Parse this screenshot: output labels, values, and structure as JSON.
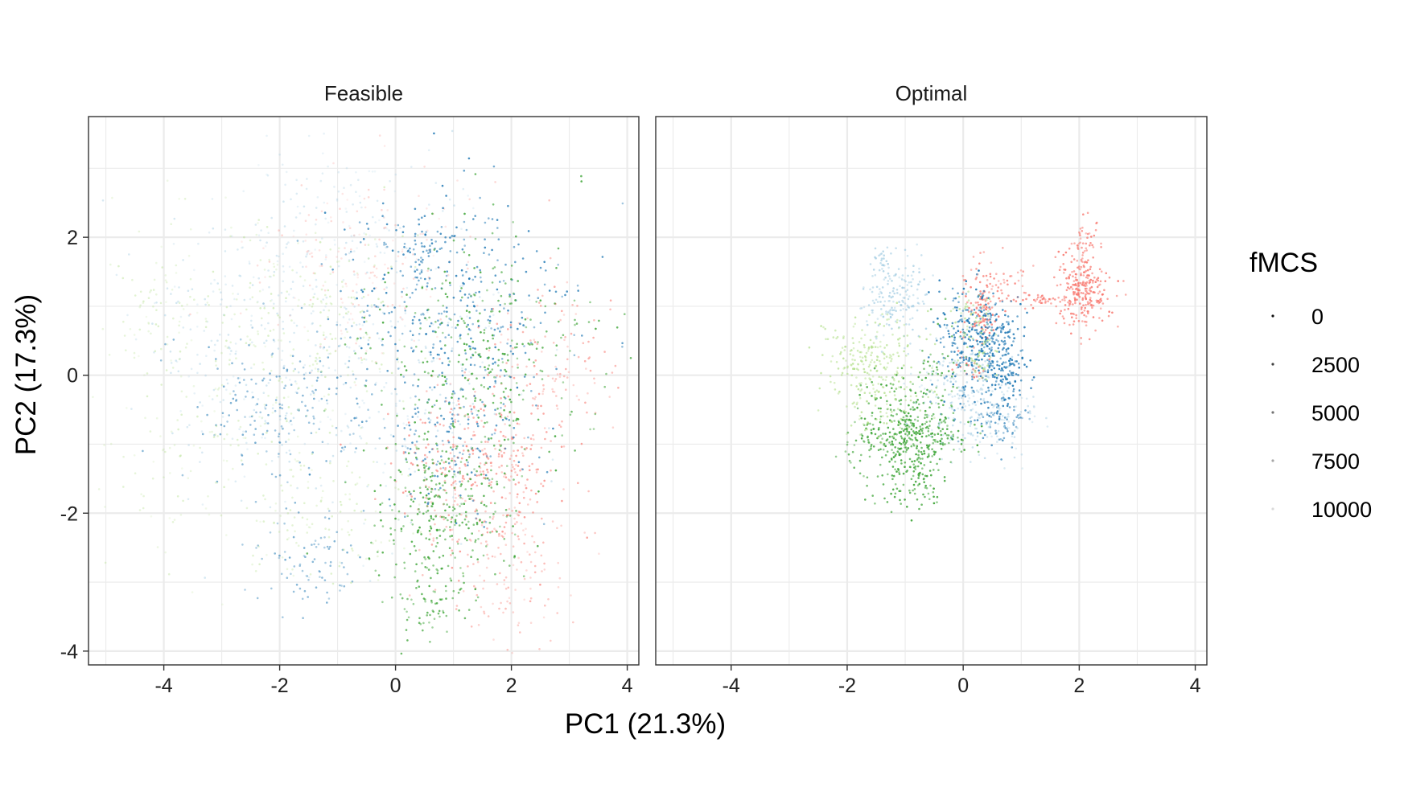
{
  "chart_data": {
    "type": "scatter",
    "xlabel": "PC1 (21.3%)",
    "ylabel": "PC2 (17.3%)",
    "xlim": [
      -5.3,
      4.2
    ],
    "ylim": [
      -4.2,
      3.75
    ],
    "x_ticks": [
      -4,
      -2,
      0,
      2,
      4
    ],
    "y_ticks": [
      -4,
      -2,
      0,
      2
    ],
    "x_tick_labels": [
      "-4",
      "-2",
      "0",
      "2",
      "4"
    ],
    "y_tick_labels": [
      "-4",
      "-2",
      "0",
      "2"
    ],
    "grid": true,
    "legend": {
      "title": "fMCS",
      "placement": "right",
      "entries": [
        {
          "label": "0",
          "alpha": 0.95
        },
        {
          "label": "2500",
          "alpha": 0.75
        },
        {
          "label": "5000",
          "alpha": 0.55
        },
        {
          "label": "7500",
          "alpha": 0.35
        },
        {
          "label": "10000",
          "alpha": 0.15
        }
      ]
    },
    "colors": [
      "#f8766d",
      "#1f78b4",
      "#33a02c",
      "#a6cee3",
      "#b2df8a"
    ],
    "panels": [
      {
        "title": "Feasible",
        "clusters": [
          {
            "color": 0,
            "cx": 1.5,
            "cy": -1.3,
            "sx": 0.7,
            "sy": 0.7,
            "n": 380,
            "amin": 0.3,
            "amax": 0.7
          },
          {
            "color": 0,
            "cx": 2.0,
            "cy": -2.8,
            "sx": 0.5,
            "sy": 0.5,
            "n": 110,
            "amin": 0.2,
            "amax": 0.5
          },
          {
            "color": 0,
            "cx": 2.8,
            "cy": 0.2,
            "sx": 0.6,
            "sy": 0.6,
            "n": 110,
            "amin": 0.25,
            "amax": 0.6
          },
          {
            "color": 0,
            "cx": -0.6,
            "cy": 1.5,
            "sx": 0.9,
            "sy": 0.7,
            "n": 170,
            "amin": 0.1,
            "amax": 0.3
          },
          {
            "color": 1,
            "cx": 1.0,
            "cy": 1.0,
            "sx": 1.0,
            "sy": 0.8,
            "n": 360,
            "amin": 0.4,
            "amax": 0.85
          },
          {
            "color": 1,
            "cx": 1.0,
            "cy": -1.0,
            "sx": 0.6,
            "sy": 0.5,
            "n": 140,
            "amin": 0.4,
            "amax": 0.8
          },
          {
            "color": 1,
            "cx": -1.8,
            "cy": -0.5,
            "sx": 0.8,
            "sy": 0.6,
            "n": 180,
            "amin": 0.3,
            "amax": 0.6
          },
          {
            "color": 1,
            "cx": -1.5,
            "cy": -2.7,
            "sx": 0.5,
            "sy": 0.35,
            "n": 80,
            "amin": 0.3,
            "amax": 0.6
          },
          {
            "color": 1,
            "cx": 0.5,
            "cy": 1.9,
            "sx": 0.3,
            "sy": 0.2,
            "n": 50,
            "amin": 0.5,
            "amax": 0.85
          },
          {
            "color": 2,
            "cx": 1.5,
            "cy": 0.4,
            "sx": 0.9,
            "sy": 0.9,
            "n": 320,
            "amin": 0.4,
            "amax": 0.85
          },
          {
            "color": 2,
            "cx": 0.8,
            "cy": -2.0,
            "sx": 0.6,
            "sy": 0.6,
            "n": 300,
            "amin": 0.4,
            "amax": 0.85
          },
          {
            "color": 2,
            "cx": 0.6,
            "cy": -3.3,
            "sx": 0.3,
            "sy": 0.25,
            "n": 60,
            "amin": 0.4,
            "amax": 0.8
          },
          {
            "color": 3,
            "cx": -2.5,
            "cy": 0.5,
            "sx": 1.0,
            "sy": 1.0,
            "n": 260,
            "amin": 0.2,
            "amax": 0.5
          },
          {
            "color": 3,
            "cx": 0.0,
            "cy": 0.0,
            "sx": 1.2,
            "sy": 1.0,
            "n": 200,
            "amin": 0.2,
            "amax": 0.5
          },
          {
            "color": 3,
            "cx": -1.0,
            "cy": 2.3,
            "sx": 0.9,
            "sy": 0.5,
            "n": 100,
            "amin": 0.15,
            "amax": 0.4
          },
          {
            "color": 4,
            "cx": -3.2,
            "cy": -0.5,
            "sx": 1.0,
            "sy": 1.2,
            "n": 220,
            "amin": 0.15,
            "amax": 0.45
          },
          {
            "color": 4,
            "cx": -1.2,
            "cy": 0.8,
            "sx": 0.9,
            "sy": 0.7,
            "n": 170,
            "amin": 0.2,
            "amax": 0.5
          },
          {
            "color": 4,
            "cx": -4.2,
            "cy": 1.0,
            "sx": 0.35,
            "sy": 0.5,
            "n": 50,
            "amin": 0.2,
            "amax": 0.45
          },
          {
            "color": 4,
            "cx": -1.0,
            "cy": -2.0,
            "sx": 0.8,
            "sy": 0.5,
            "n": 110,
            "amin": 0.2,
            "amax": 0.45
          }
        ]
      },
      {
        "title": "Optimal",
        "clusters": [
          {
            "color": 0,
            "cx": 2.05,
            "cy": 1.2,
            "sx": 0.25,
            "sy": 0.25,
            "n": 240,
            "amin": 0.5,
            "amax": 0.9
          },
          {
            "color": 0,
            "cx": 2.1,
            "cy": 1.9,
            "sx": 0.12,
            "sy": 0.2,
            "n": 50,
            "amin": 0.4,
            "amax": 0.8
          },
          {
            "color": 0,
            "cx": 1.35,
            "cy": 1.1,
            "sx": 0.25,
            "sy": 0.05,
            "n": 40,
            "amin": 0.5,
            "amax": 0.85
          },
          {
            "color": 0,
            "cx": 0.6,
            "cy": 1.35,
            "sx": 0.3,
            "sy": 0.15,
            "n": 60,
            "amin": 0.4,
            "amax": 0.8
          },
          {
            "color": 0,
            "cx": 0.3,
            "cy": 0.9,
            "sx": 0.15,
            "sy": 0.25,
            "n": 80,
            "amin": 0.55,
            "amax": 0.95
          },
          {
            "color": 0,
            "cx": 0.2,
            "cy": 0.1,
            "sx": 0.15,
            "sy": 0.1,
            "n": 20,
            "amin": 0.6,
            "amax": 0.95
          },
          {
            "color": 1,
            "cx": 0.3,
            "cy": 0.5,
            "sx": 0.35,
            "sy": 0.4,
            "n": 360,
            "amin": 0.5,
            "amax": 0.95
          },
          {
            "color": 1,
            "cx": 0.75,
            "cy": 0.05,
            "sx": 0.15,
            "sy": 0.35,
            "n": 110,
            "amin": 0.5,
            "amax": 0.95
          },
          {
            "color": 1,
            "cx": 0.6,
            "cy": -0.7,
            "sx": 0.3,
            "sy": 0.2,
            "n": 60,
            "amin": 0.4,
            "amax": 0.8
          },
          {
            "color": 2,
            "cx": -1.0,
            "cy": -0.7,
            "sx": 0.35,
            "sy": 0.35,
            "n": 220,
            "amin": 0.5,
            "amax": 0.9
          },
          {
            "color": 2,
            "cx": -0.6,
            "cy": -0.9,
            "sx": 0.35,
            "sy": 0.15,
            "n": 110,
            "amin": 0.5,
            "amax": 0.9
          },
          {
            "color": 2,
            "cx": -0.9,
            "cy": -1.5,
            "sx": 0.3,
            "sy": 0.25,
            "n": 110,
            "amin": 0.5,
            "amax": 0.9
          },
          {
            "color": 2,
            "cx": -1.7,
            "cy": -1.0,
            "sx": 0.25,
            "sy": 0.25,
            "n": 50,
            "amin": 0.4,
            "amax": 0.8
          },
          {
            "color": 2,
            "cx": -0.4,
            "cy": 0.0,
            "sx": 0.2,
            "sy": 0.4,
            "n": 50,
            "amin": 0.4,
            "amax": 0.8
          },
          {
            "color": 3,
            "cx": -1.2,
            "cy": 1.1,
            "sx": 0.3,
            "sy": 0.3,
            "n": 170,
            "amin": 0.4,
            "amax": 0.8
          },
          {
            "color": 3,
            "cx": 0.0,
            "cy": -0.3,
            "sx": 0.4,
            "sy": 0.4,
            "n": 170,
            "amin": 0.3,
            "amax": 0.7
          },
          {
            "color": 3,
            "cx": 0.6,
            "cy": -0.6,
            "sx": 0.35,
            "sy": 0.3,
            "n": 90,
            "amin": 0.3,
            "amax": 0.6
          },
          {
            "color": 3,
            "cx": -1.4,
            "cy": 1.65,
            "sx": 0.1,
            "sy": 0.1,
            "n": 20,
            "amin": 0.5,
            "amax": 0.85
          },
          {
            "color": 4,
            "cx": -1.6,
            "cy": 0.3,
            "sx": 0.4,
            "sy": 0.3,
            "n": 170,
            "amin": 0.4,
            "amax": 0.8
          },
          {
            "color": 4,
            "cx": -1.4,
            "cy": -0.3,
            "sx": 0.4,
            "sy": 0.3,
            "n": 110,
            "amin": 0.4,
            "amax": 0.8
          },
          {
            "color": 4,
            "cx": 0.2,
            "cy": 0.8,
            "sx": 0.2,
            "sy": 0.2,
            "n": 50,
            "amin": 0.4,
            "amax": 0.8
          },
          {
            "color": 4,
            "cx": 0.3,
            "cy": 0.2,
            "sx": 0.15,
            "sy": 0.15,
            "n": 30,
            "amin": 0.45,
            "amax": 0.85
          }
        ]
      }
    ]
  }
}
